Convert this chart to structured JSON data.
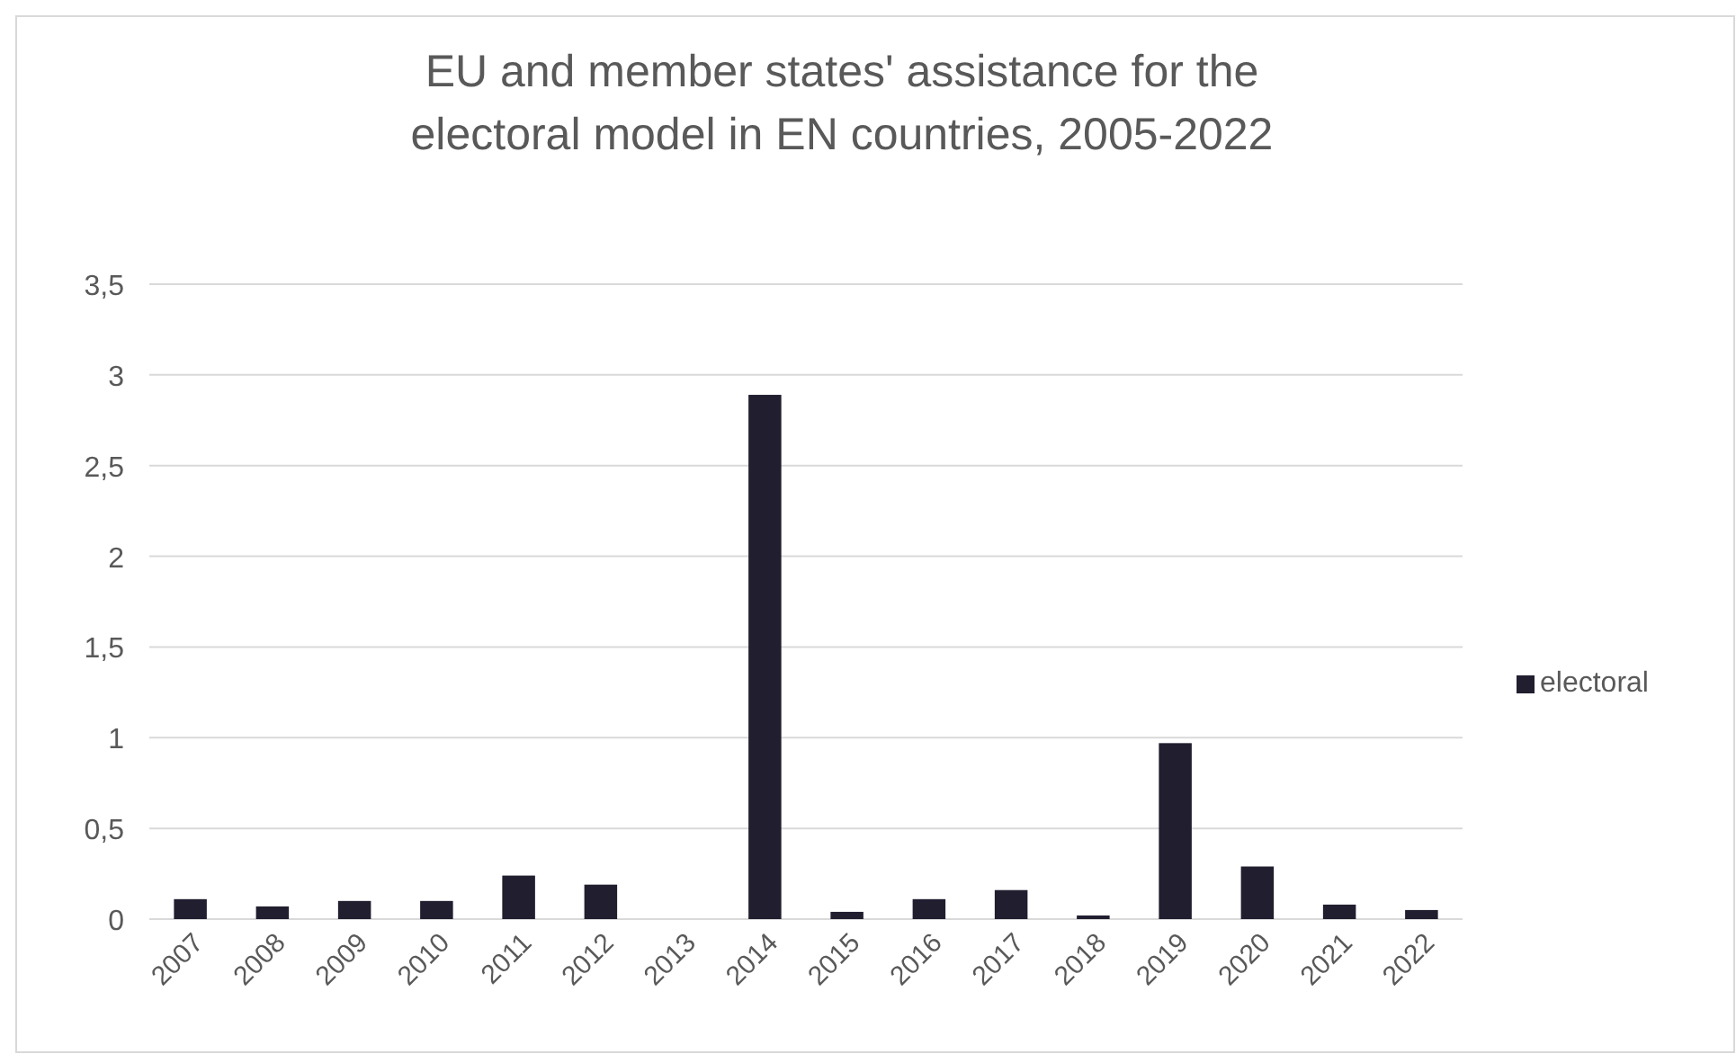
{
  "chart_data": {
    "type": "bar",
    "title": "EU and member states'  assistance for the electoral model in EN countries, 2005-2022",
    "categories": [
      "2007",
      "2008",
      "2009",
      "2010",
      "2011",
      "2012",
      "2013",
      "2014",
      "2015",
      "2016",
      "2017",
      "2018",
      "2019",
      "2020",
      "2021",
      "2022"
    ],
    "series": [
      {
        "name": "electoral",
        "color": "#201e2f",
        "values": [
          0.11,
          0.07,
          0.1,
          0.1,
          0.24,
          0.19,
          null,
          2.89,
          0.04,
          0.11,
          0.16,
          0.02,
          0.97,
          0.29,
          0.08,
          0.05
        ]
      }
    ],
    "ylim": [
      0,
      3.5
    ],
    "yticks": [
      0,
      {
        "value": 0.5,
        "label": "0,5"
      },
      1,
      {
        "value": 1.5,
        "label": "1,5"
      },
      2,
      {
        "value": 2.5,
        "label": "2,5"
      },
      3,
      {
        "value": 3.5,
        "label": "3,5"
      }
    ],
    "grid": "y",
    "legend": "right"
  }
}
